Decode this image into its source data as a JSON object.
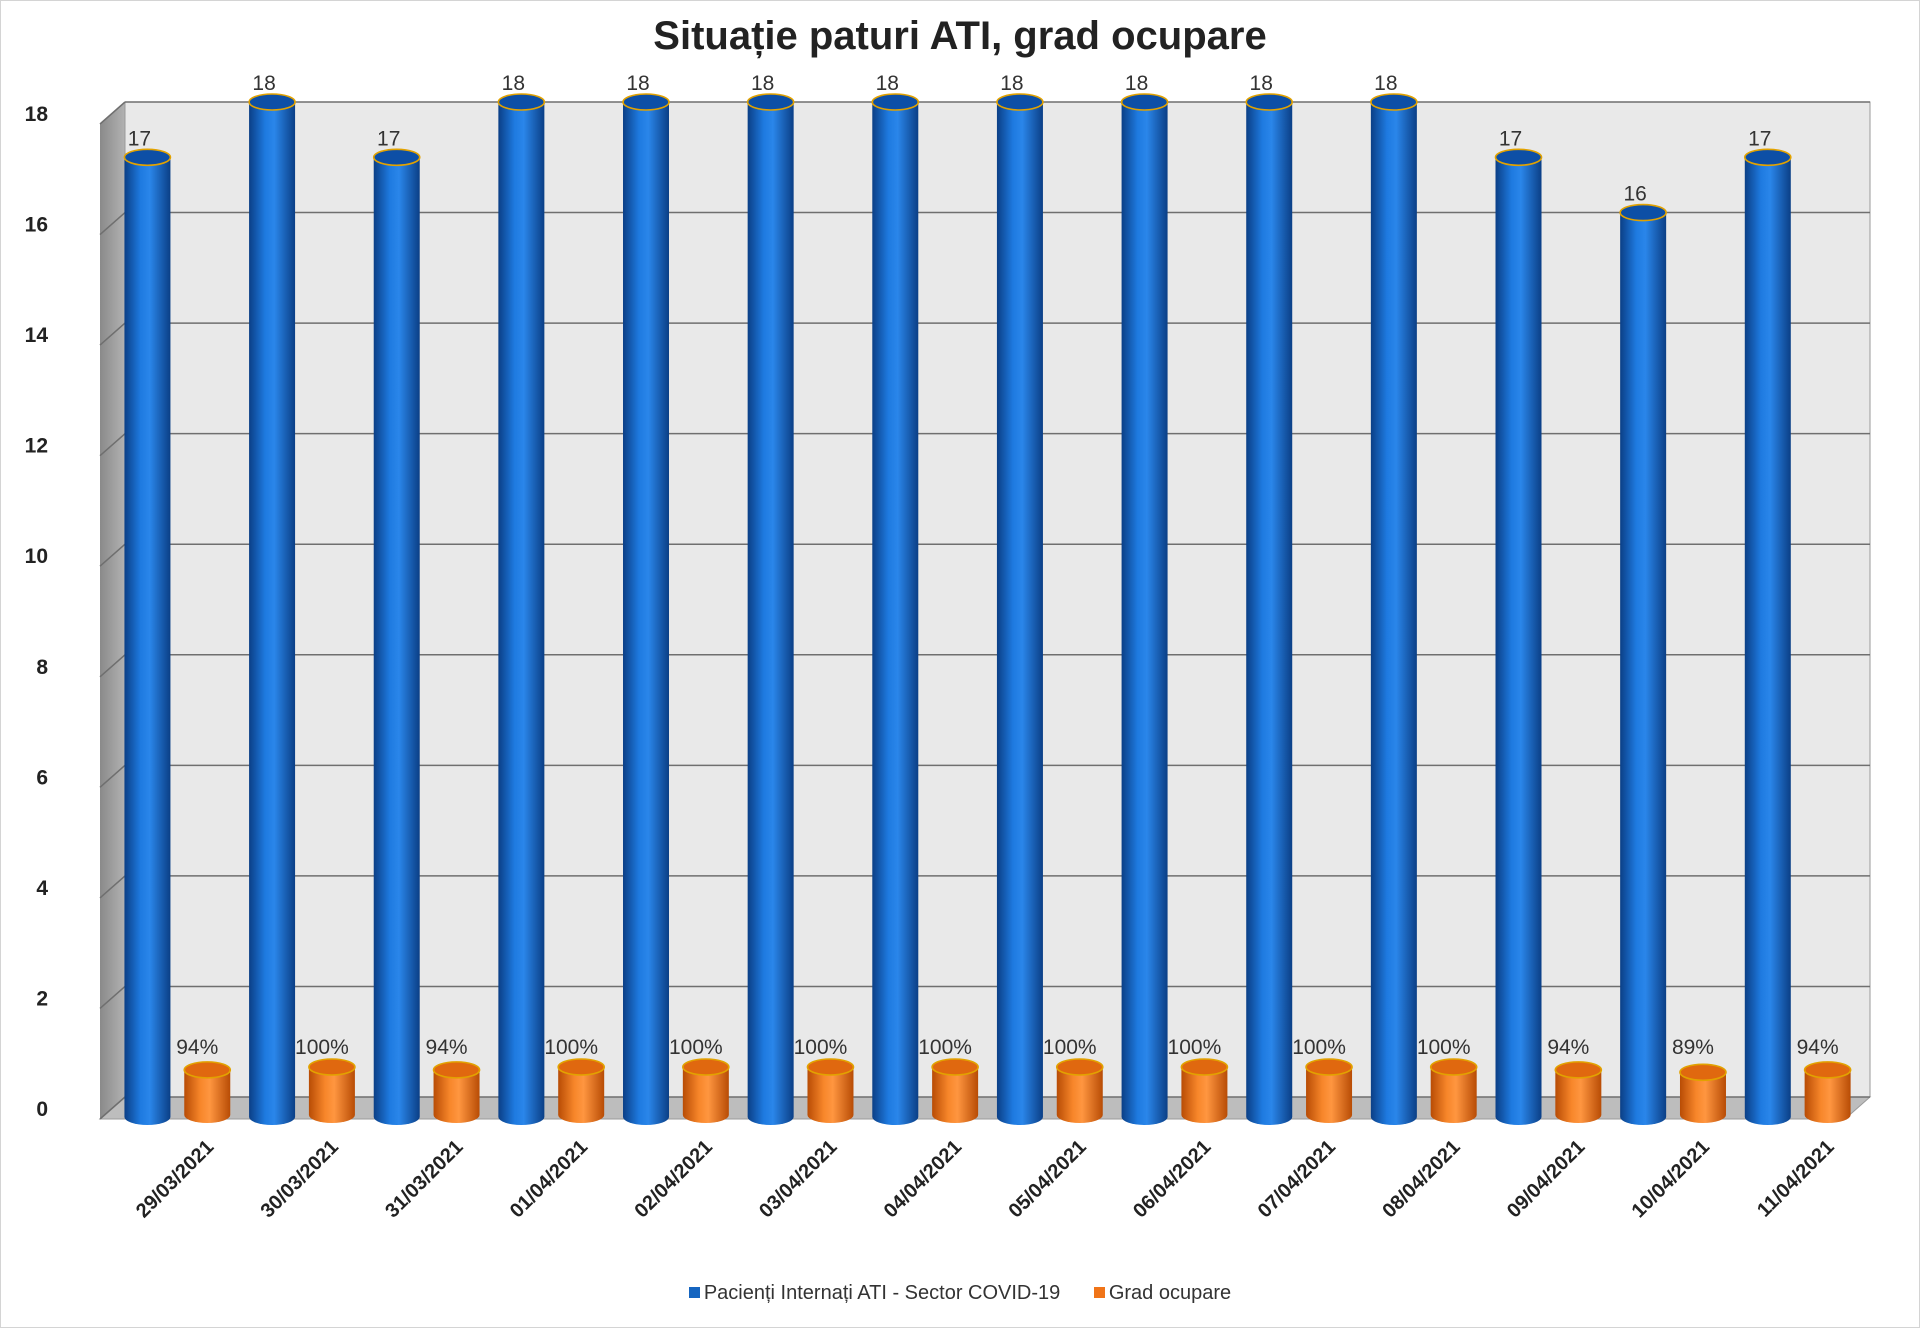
{
  "chart_data": {
    "type": "bar",
    "title": "Situație paturi ATI, grad ocupare",
    "categories": [
      "29/03/2021",
      "30/03/2021",
      "31/03/2021",
      "01/04/2021",
      "02/04/2021",
      "03/04/2021",
      "04/04/2021",
      "05/04/2021",
      "06/04/2021",
      "07/04/2021",
      "08/04/2021",
      "09/04/2021",
      "10/04/2021",
      "11/04/2021"
    ],
    "series": [
      {
        "name": "Pacienți Internați ATI - Sector COVID-19",
        "color": "#1565c0",
        "values": [
          17,
          18,
          17,
          18,
          18,
          18,
          18,
          18,
          18,
          18,
          18,
          17,
          16,
          17
        ],
        "labels": [
          "17",
          "18",
          "17",
          "18",
          "18",
          "18",
          "18",
          "18",
          "18",
          "18",
          "18",
          "17",
          "16",
          "17"
        ]
      },
      {
        "name": "Grad ocupare",
        "color": "#f07418",
        "values": [
          0.94,
          1,
          0.94,
          1,
          1,
          1,
          1,
          1,
          1,
          1,
          1,
          0.94,
          0.89,
          0.94
        ],
        "labels": [
          "94%",
          "100%",
          "94%",
          "100%",
          "100%",
          "100%",
          "100%",
          "100%",
          "100%",
          "100%",
          "100%",
          "94%",
          "89%",
          "94%"
        ]
      }
    ],
    "ylim": [
      0,
      18
    ],
    "yticks": [
      0,
      2,
      4,
      6,
      8,
      10,
      12,
      14,
      16,
      18
    ],
    "grid": true,
    "legend": "bottom",
    "style": "3d-cylinder"
  }
}
